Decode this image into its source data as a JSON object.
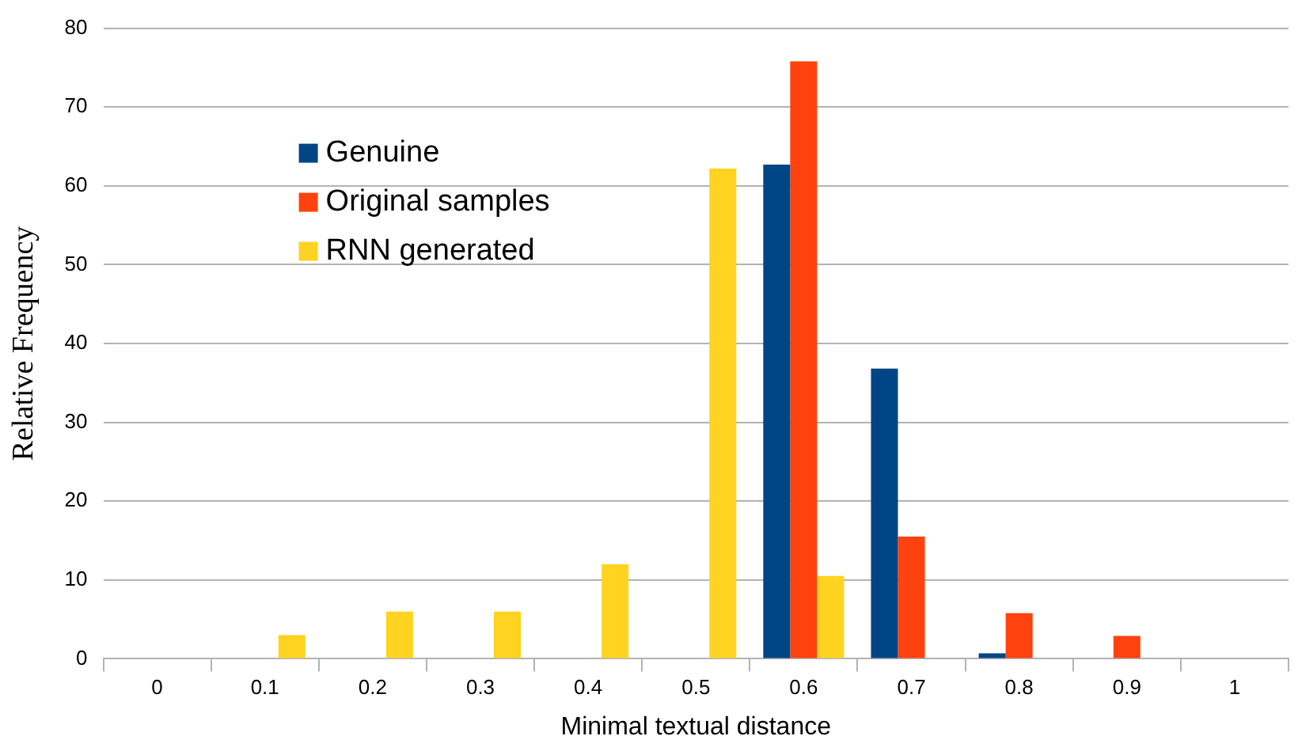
{
  "chart_data": {
    "type": "bar",
    "xlabel": "Minimal textual distance",
    "ylabel": "Relative Frequency",
    "categories": [
      "0",
      "0.1",
      "0.2",
      "0.3",
      "0.4",
      "0.5",
      "0.6",
      "0.7",
      "0.8",
      "0.9",
      "1"
    ],
    "series": [
      {
        "name": "Genuine",
        "color": "#004586",
        "values": [
          0,
          0,
          0,
          0,
          0,
          0,
          62.7,
          36.8,
          0.7,
          0,
          0
        ]
      },
      {
        "name": "Original samples",
        "color": "#ff420e",
        "values": [
          0,
          0,
          0,
          0,
          0,
          0,
          75.8,
          15.5,
          5.8,
          2.9,
          0
        ]
      },
      {
        "name": "RNN generated",
        "color": "#ffd320",
        "values": [
          0,
          3,
          6,
          6,
          12,
          62.2,
          10.5,
          0,
          0,
          0,
          0
        ]
      }
    ],
    "ylim": [
      0,
      80
    ],
    "yticks": [
      0,
      10,
      20,
      30,
      40,
      50,
      60,
      70,
      80
    ],
    "grid": "y",
    "legend": "top left"
  }
}
